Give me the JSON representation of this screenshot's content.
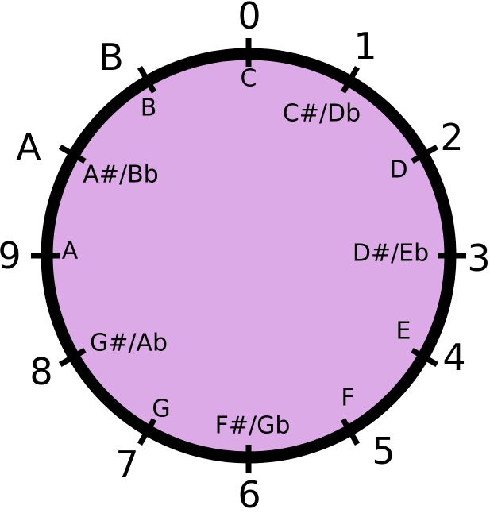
{
  "colors": {
    "fill": "#dcaae6",
    "stroke": "#000000",
    "background": "#ffffff"
  },
  "positions": [
    {
      "number": "0",
      "note": "C"
    },
    {
      "number": "1",
      "note": "C#/Db"
    },
    {
      "number": "2",
      "note": "D"
    },
    {
      "number": "3",
      "note": "D#/Eb"
    },
    {
      "number": "4",
      "note": "E"
    },
    {
      "number": "5",
      "note": "F"
    },
    {
      "number": "6",
      "note": "F#/Gb"
    },
    {
      "number": "7",
      "note": "G"
    },
    {
      "number": "8",
      "note": "G#/Ab"
    },
    {
      "number": "9",
      "note": "A"
    },
    {
      "number": "A",
      "note": "A#/Bb"
    },
    {
      "number": "B",
      "note": "B"
    }
  ]
}
